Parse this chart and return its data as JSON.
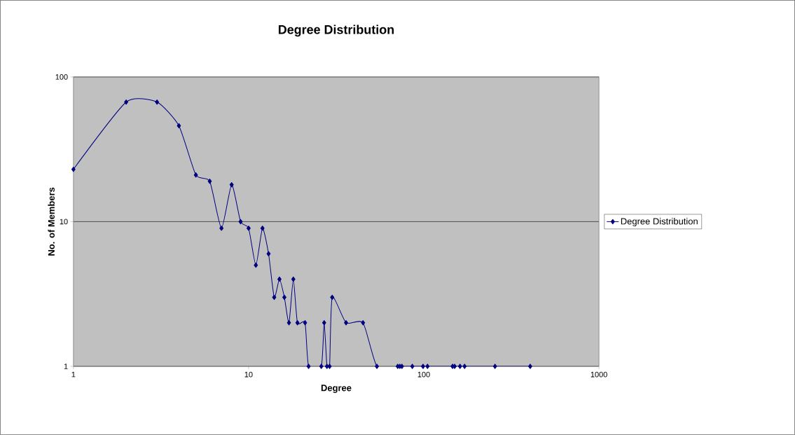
{
  "chart_data": {
    "type": "line",
    "title": "Degree Distribution",
    "xlabel": "Degree",
    "ylabel": "No. of Members",
    "log": "xy",
    "xlim": [
      1,
      1000
    ],
    "ylim": [
      1,
      100
    ],
    "xticks": [
      1,
      10,
      100,
      1000
    ],
    "yticks": [
      1,
      10,
      100
    ],
    "grid": "y",
    "legend": "right",
    "marker": "diamond",
    "line_style": "solid",
    "series": [
      {
        "name": "Degree Distribution",
        "color": "#000080",
        "x": [
          1,
          2,
          3,
          4,
          5,
          6,
          7,
          8,
          9,
          10,
          11,
          12,
          13,
          14,
          15,
          16,
          17,
          18,
          19,
          21,
          22,
          26,
          27,
          28,
          29,
          30,
          36,
          45,
          54,
          71,
          73,
          75,
          86,
          99,
          105,
          146,
          150,
          161,
          171,
          255,
          405
        ],
        "values": [
          23,
          67,
          67,
          46,
          21,
          19,
          9,
          18,
          10,
          9,
          5,
          9,
          6,
          3,
          4,
          3,
          2,
          4,
          2,
          2,
          1,
          1,
          2,
          1,
          1,
          3,
          2,
          2,
          1,
          1,
          1,
          1,
          1,
          1,
          1,
          1,
          1,
          1,
          1,
          1,
          1
        ]
      }
    ]
  }
}
